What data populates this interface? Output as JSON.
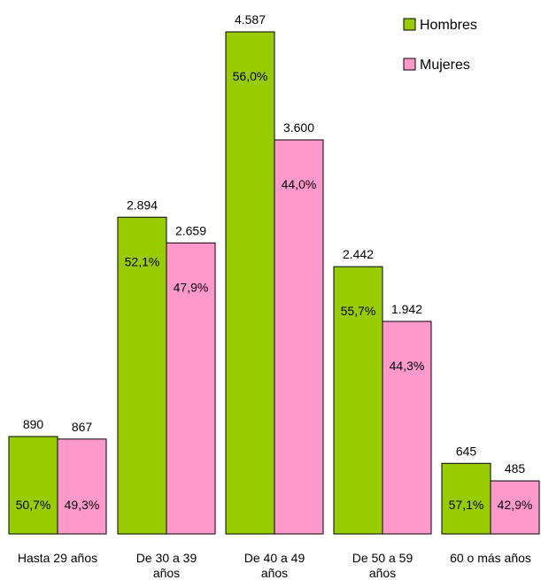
{
  "chart_data": {
    "type": "bar",
    "categories": [
      "Hasta 29 años",
      "De 30 a 39 años",
      "De 40 a 49 años",
      "De 50 a 59 años",
      "60 o más años"
    ],
    "category_lines": [
      [
        "Hasta 29 años"
      ],
      [
        "De 30 a 39",
        "años"
      ],
      [
        "De 40 a 49",
        "años"
      ],
      [
        "De 50 a 59",
        "años"
      ],
      [
        "60 o más años"
      ]
    ],
    "series": [
      {
        "name": "Hombres",
        "values": [
          890,
          2894,
          4587,
          2442,
          645
        ],
        "value_labels": [
          "890",
          "2.894",
          "4.587",
          "2.442",
          "645"
        ],
        "pct_labels": [
          "50,7%",
          "52,1%",
          "56,0%",
          "55,7%",
          "57,1%"
        ],
        "color": "#99CC00"
      },
      {
        "name": "Mujeres",
        "values": [
          867,
          2659,
          3600,
          1942,
          485
        ],
        "value_labels": [
          "867",
          "2.659",
          "3.600",
          "1.942",
          "485"
        ],
        "pct_labels": [
          "49,3%",
          "47,9%",
          "44,0%",
          "44,3%",
          "42,9%"
        ],
        "color": "#FF99CC"
      }
    ],
    "ylim": [
      0,
      4587
    ],
    "grid": false,
    "legend_position": "top-right",
    "title": "",
    "xlabel": "",
    "ylabel": ""
  }
}
